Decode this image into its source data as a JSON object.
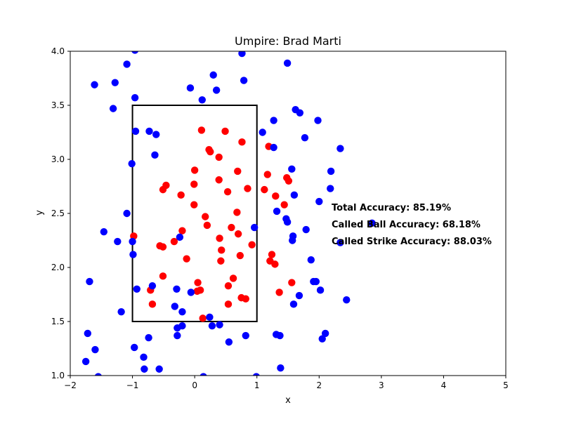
{
  "chart_data": {
    "type": "scatter",
    "title": "Umpire: Brad Marti",
    "xlabel": "x",
    "ylabel": "y",
    "xlim": [
      -2,
      5
    ],
    "ylim": [
      1.0,
      4.0
    ],
    "xticks": [
      -2,
      -1,
      0,
      1,
      2,
      3,
      4,
      5
    ],
    "yticks": [
      1.0,
      1.5,
      2.0,
      2.5,
      3.0,
      3.5,
      4.0
    ],
    "grid": false,
    "strike_zone": {
      "x": [
        -1,
        1
      ],
      "y": [
        1.5,
        3.5
      ],
      "color": "#000000"
    },
    "series": [
      {
        "color": "#ff0000",
        "points": [
          [
            0.11,
            3.27
          ],
          [
            0.49,
            3.26
          ],
          [
            0.76,
            3.16
          ],
          [
            0.23,
            3.09
          ],
          [
            0.25,
            3.07
          ],
          [
            1.19,
            3.12
          ],
          [
            0.39,
            3.02
          ],
          [
            0.0,
            2.9
          ],
          [
            0.69,
            2.89
          ],
          [
            1.17,
            2.86
          ],
          [
            0.39,
            2.81
          ],
          [
            1.48,
            2.83
          ],
          [
            1.51,
            2.8
          ],
          [
            -0.01,
            2.77
          ],
          [
            -0.46,
            2.76
          ],
          [
            -0.51,
            2.72
          ],
          [
            0.85,
            2.73
          ],
          [
            1.12,
            2.72
          ],
          [
            0.53,
            2.7
          ],
          [
            -0.22,
            2.67
          ],
          [
            1.3,
            2.66
          ],
          [
            -0.01,
            2.58
          ],
          [
            1.44,
            2.58
          ],
          [
            0.68,
            2.51
          ],
          [
            0.17,
            2.47
          ],
          [
            0.2,
            2.39
          ],
          [
            0.59,
            2.37
          ],
          [
            -0.2,
            2.34
          ],
          [
            0.7,
            2.31
          ],
          [
            -0.98,
            2.29
          ],
          [
            0.4,
            2.27
          ],
          [
            -0.33,
            2.24
          ],
          [
            -0.56,
            2.2
          ],
          [
            -0.51,
            2.19
          ],
          [
            0.92,
            2.21
          ],
          [
            0.43,
            2.16
          ],
          [
            0.73,
            2.11
          ],
          [
            1.24,
            2.12
          ],
          [
            0.42,
            2.06
          ],
          [
            1.21,
            2.06
          ],
          [
            1.29,
            2.03
          ],
          [
            -0.13,
            2.08
          ],
          [
            -0.51,
            1.92
          ],
          [
            0.62,
            1.9
          ],
          [
            0.05,
            1.86
          ],
          [
            0.54,
            1.83
          ],
          [
            1.56,
            1.86
          ],
          [
            -0.71,
            1.79
          ],
          [
            0.04,
            1.78
          ],
          [
            0.09,
            1.79
          ],
          [
            1.36,
            1.77
          ],
          [
            0.75,
            1.72
          ],
          [
            0.82,
            1.71
          ],
          [
            -0.68,
            1.66
          ],
          [
            0.54,
            1.66
          ],
          [
            0.13,
            1.53
          ]
        ]
      },
      {
        "color": "#0000ff",
        "points": [
          [
            -0.96,
            4.01
          ],
          [
            0.76,
            3.98
          ],
          [
            -1.09,
            3.88
          ],
          [
            1.49,
            3.89
          ],
          [
            0.3,
            3.78
          ],
          [
            0.79,
            3.73
          ],
          [
            -1.28,
            3.71
          ],
          [
            -1.61,
            3.69
          ],
          [
            -0.07,
            3.66
          ],
          [
            0.35,
            3.64
          ],
          [
            -0.96,
            3.57
          ],
          [
            0.12,
            3.55
          ],
          [
            -1.31,
            3.47
          ],
          [
            1.62,
            3.46
          ],
          [
            1.69,
            3.43
          ],
          [
            1.27,
            3.36
          ],
          [
            1.98,
            3.36
          ],
          [
            -0.95,
            3.26
          ],
          [
            -0.73,
            3.26
          ],
          [
            -0.62,
            3.23
          ],
          [
            1.09,
            3.25
          ],
          [
            1.77,
            3.2
          ],
          [
            1.27,
            3.11
          ],
          [
            2.34,
            3.1
          ],
          [
            -0.64,
            3.04
          ],
          [
            -1.01,
            2.96
          ],
          [
            1.56,
            2.91
          ],
          [
            2.19,
            2.89
          ],
          [
            2.18,
            2.73
          ],
          [
            1.6,
            2.67
          ],
          [
            2.0,
            2.61
          ],
          [
            1.32,
            2.52
          ],
          [
            -1.09,
            2.5
          ],
          [
            1.47,
            2.45
          ],
          [
            1.49,
            2.42
          ],
          [
            2.85,
            2.41
          ],
          [
            -1.46,
            2.33
          ],
          [
            0.96,
            2.37
          ],
          [
            1.79,
            2.35
          ],
          [
            -0.24,
            2.28
          ],
          [
            1.58,
            2.29
          ],
          [
            -1.24,
            2.24
          ],
          [
            -1.0,
            2.24
          ],
          [
            1.57,
            2.25
          ],
          [
            2.34,
            2.23
          ],
          [
            -0.99,
            2.12
          ],
          [
            1.87,
            2.07
          ],
          [
            1.91,
            1.87
          ],
          [
            1.95,
            1.87
          ],
          [
            -1.69,
            1.87
          ],
          [
            -0.68,
            1.83
          ],
          [
            -0.93,
            1.8
          ],
          [
            -0.29,
            1.8
          ],
          [
            2.02,
            1.79
          ],
          [
            -0.06,
            1.77
          ],
          [
            1.68,
            1.74
          ],
          [
            2.44,
            1.7
          ],
          [
            1.59,
            1.66
          ],
          [
            -0.32,
            1.64
          ],
          [
            -1.18,
            1.59
          ],
          [
            -0.2,
            1.59
          ],
          [
            0.24,
            1.54
          ],
          [
            -0.2,
            1.46
          ],
          [
            0.4,
            1.47
          ],
          [
            0.28,
            1.46
          ],
          [
            -0.28,
            1.44
          ],
          [
            -1.72,
            1.39
          ],
          [
            2.1,
            1.39
          ],
          [
            0.82,
            1.37
          ],
          [
            1.31,
            1.38
          ],
          [
            1.37,
            1.37
          ],
          [
            -0.28,
            1.37
          ],
          [
            -0.74,
            1.35
          ],
          [
            2.05,
            1.34
          ],
          [
            0.55,
            1.31
          ],
          [
            -0.97,
            1.26
          ],
          [
            -1.6,
            1.24
          ],
          [
            -0.82,
            1.17
          ],
          [
            -1.75,
            1.13
          ],
          [
            -0.81,
            1.06
          ],
          [
            -0.57,
            1.06
          ],
          [
            1.38,
            1.07
          ],
          [
            -1.55,
            0.99
          ],
          [
            0.14,
            0.99
          ],
          [
            0.99,
            0.99
          ]
        ]
      }
    ],
    "annotations": [
      "Total Accuracy: 85.19%",
      "Called Ball Accuracy: 68.18%",
      "Called Strike Accuracy: 88.03%"
    ]
  }
}
